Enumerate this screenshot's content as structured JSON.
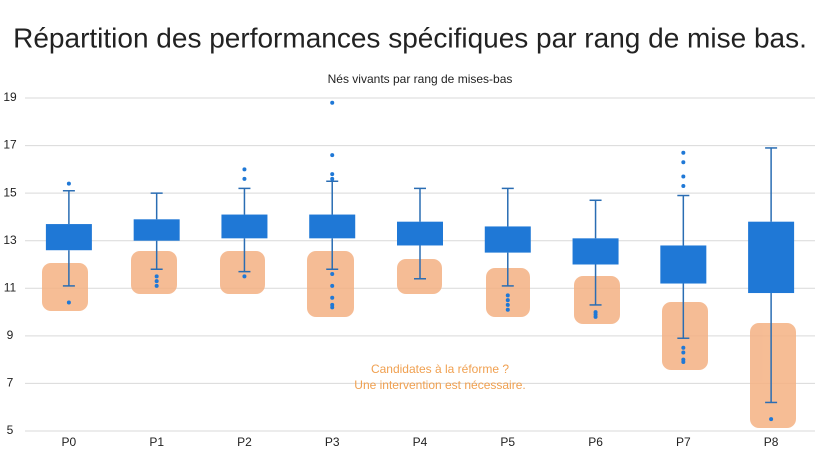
{
  "chart_data": {
    "type": "box",
    "title": "Répartition des performances spécifiques par rang de mise bas.",
    "subtitle": "Nés vivants par rang de mises-bas",
    "annotations": [
      "Candidates à la réforme ?",
      "Une intervention est nécessaire."
    ],
    "categories": [
      "P0",
      "P1",
      "P2",
      "P3",
      "P4",
      "P5",
      "P6",
      "P7",
      "P8"
    ],
    "boxes": [
      {
        "min": 11.1,
        "q1": 12.6,
        "q3": 13.7,
        "max": 15.1,
        "outliers": [
          15.4,
          10.4
        ]
      },
      {
        "min": 11.8,
        "q1": 13.0,
        "q3": 13.9,
        "max": 15.0,
        "outliers": [
          11.5,
          11.3,
          11.1
        ]
      },
      {
        "min": 11.7,
        "q1": 13.1,
        "q3": 14.1,
        "max": 15.2,
        "outliers": [
          16.0,
          15.6,
          11.5
        ]
      },
      {
        "min": 11.8,
        "q1": 13.1,
        "q3": 14.1,
        "max": 15.5,
        "outliers": [
          18.8,
          16.6,
          15.8,
          15.6,
          11.6,
          11.1,
          10.6,
          10.3,
          10.2
        ]
      },
      {
        "min": 11.4,
        "q1": 12.8,
        "q3": 13.8,
        "max": 15.2,
        "outliers": []
      },
      {
        "min": 11.1,
        "q1": 12.5,
        "q3": 13.6,
        "max": 15.2,
        "outliers": [
          10.7,
          10.5,
          10.3,
          10.1
        ]
      },
      {
        "min": 10.3,
        "q1": 12.0,
        "q3": 13.1,
        "max": 14.7,
        "outliers": [
          10.0,
          9.9,
          9.8
        ]
      },
      {
        "min": 8.9,
        "q1": 11.2,
        "q3": 12.8,
        "max": 14.9,
        "outliers": [
          16.7,
          16.3,
          15.7,
          15.3,
          8.5,
          8.3,
          8.0,
          7.9
        ]
      },
      {
        "min": 6.2,
        "q1": 10.8,
        "q3": 13.8,
        "max": 16.9,
        "outliers": [
          5.5
        ]
      }
    ],
    "color": "#1f78d6",
    "whisker_color": "#2a6db3",
    "ylim": [
      5,
      19
    ],
    "yticks": [
      5,
      7,
      9,
      11,
      13,
      15,
      17,
      19
    ],
    "grid": true
  }
}
